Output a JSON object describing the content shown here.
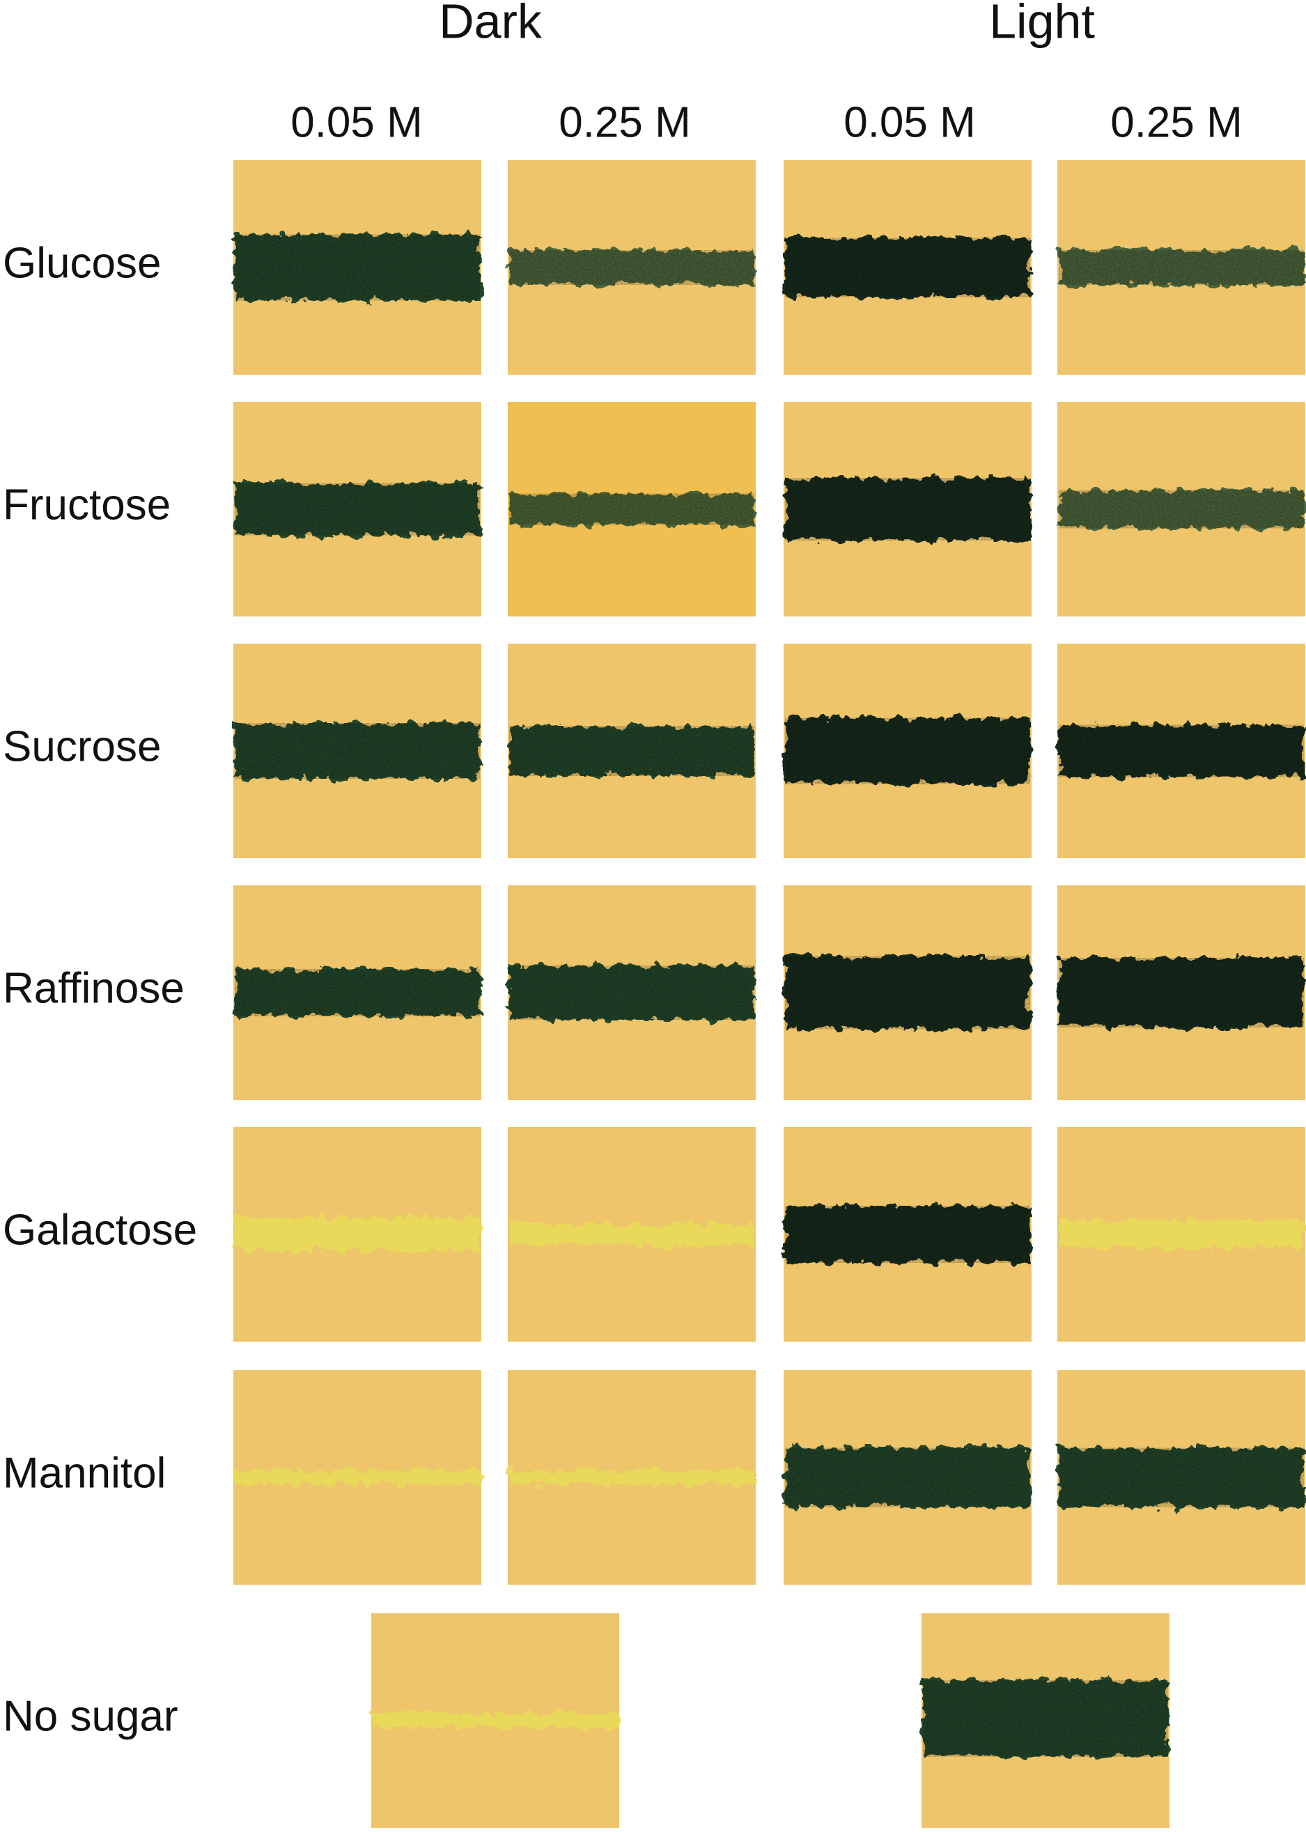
{
  "header": {
    "groups": [
      "Dark",
      "Light"
    ],
    "concentrations": [
      "0.05 M",
      "0.25 M",
      "0.05 M",
      "0.25 M"
    ]
  },
  "rows": [
    "Glucose",
    "Fructose",
    "Sucrose",
    "Raffinose",
    "Galactose",
    "Mannitol",
    "No sugar"
  ]
}
